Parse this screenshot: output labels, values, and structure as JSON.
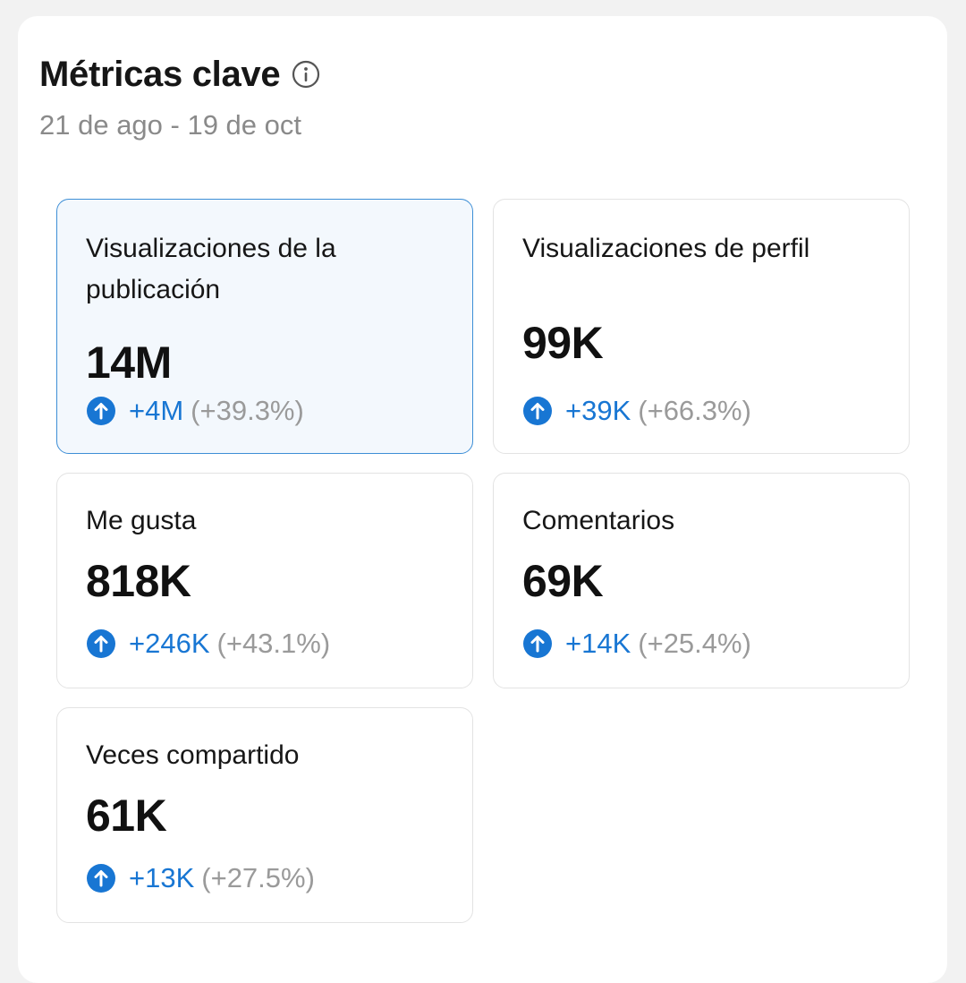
{
  "header": {
    "title": "Métricas clave",
    "date_range": "21 de ago - 19 de oct",
    "info_icon": "info-icon"
  },
  "colors": {
    "accent": "#1876d3",
    "selected_border": "#3d8ed6",
    "selected_bg": "#f3f8fd"
  },
  "metrics": [
    {
      "label": "Visualizaciones de la publicación",
      "value": "14M",
      "delta": "+4M",
      "percent": "(+39.3%)",
      "selected": true,
      "icon": "arrow-up-circle-icon"
    },
    {
      "label": "Visualizaciones de perfil",
      "value": "99K",
      "delta": "+39K",
      "percent": "(+66.3%)",
      "selected": false,
      "icon": "arrow-up-circle-icon"
    },
    {
      "label": "Me gusta",
      "value": "818K",
      "delta": "+246K",
      "percent": "(+43.1%)",
      "selected": false,
      "icon": "arrow-up-circle-icon"
    },
    {
      "label": "Comentarios",
      "value": "69K",
      "delta": "+14K",
      "percent": "(+25.4%)",
      "selected": false,
      "icon": "arrow-up-circle-icon"
    },
    {
      "label": "Veces compartido",
      "value": "61K",
      "delta": "+13K",
      "percent": "(+27.5%)",
      "selected": false,
      "icon": "arrow-up-circle-icon"
    }
  ]
}
